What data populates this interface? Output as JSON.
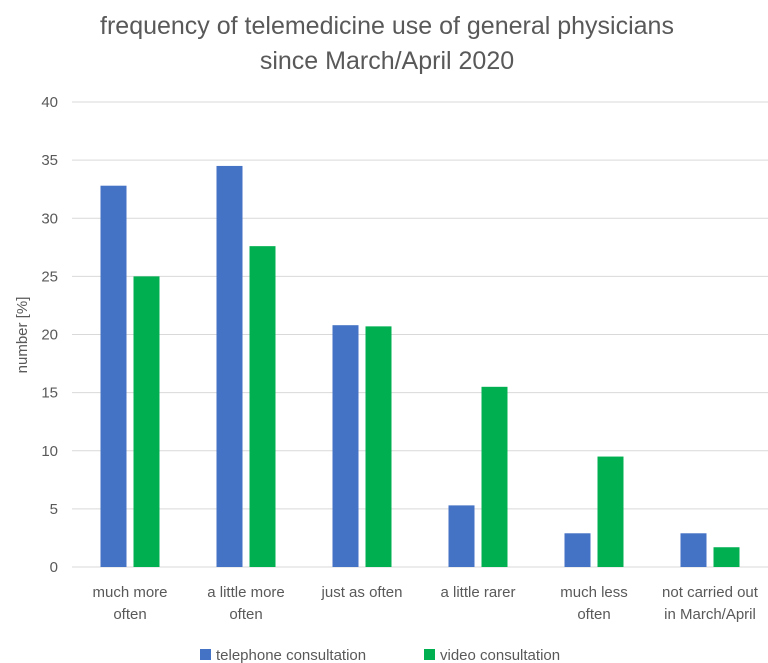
{
  "chart_data": {
    "type": "bar",
    "title_lines": [
      "frequency of telemedicine use of general physicians",
      "since March/April 2020"
    ],
    "ylabel": "number [%]",
    "xlabel": "",
    "ylim": [
      0,
      40
    ],
    "yticks": [
      "0",
      "5",
      "10",
      "15",
      "20",
      "25",
      "30",
      "35",
      "40"
    ],
    "grid": true,
    "legend_position": "bottom",
    "categories": [
      [
        "much more",
        "often"
      ],
      [
        "a little more",
        "often"
      ],
      [
        "just as often"
      ],
      [
        "a little rarer"
      ],
      [
        "much less",
        "often"
      ],
      [
        "not carried out",
        "in March/April"
      ]
    ],
    "series": [
      {
        "name": "telephone consultation",
        "color": "#4472c4",
        "values": [
          32.8,
          34.5,
          20.8,
          5.3,
          2.9,
          2.9
        ]
      },
      {
        "name": "video consultation",
        "color": "#00b050",
        "values": [
          25.0,
          27.6,
          20.7,
          15.5,
          9.5,
          1.7
        ]
      }
    ]
  }
}
